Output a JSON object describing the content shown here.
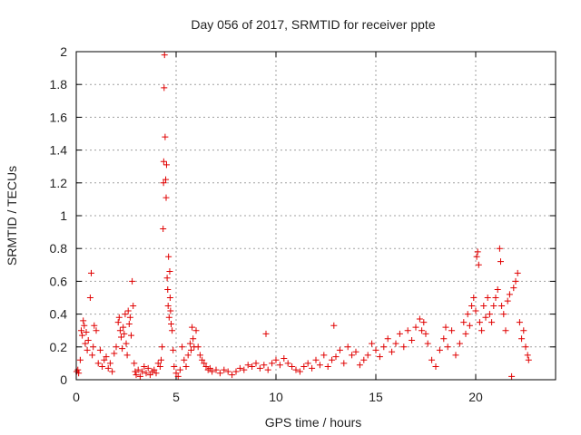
{
  "chart_data": {
    "type": "scatter",
    "title": "Day 056 of 2017, SRMTID for receiver ppte",
    "xlabel": "GPS time / hours",
    "ylabel": "SRMTID / TECUs",
    "xlim": [
      0,
      24
    ],
    "ylim": [
      0,
      2
    ],
    "xticks": [
      0,
      5,
      10,
      15,
      20
    ],
    "xtick_labels": [
      "0",
      "5",
      "10",
      "15",
      "20"
    ],
    "yticks": [
      0,
      0.2,
      0.4,
      0.6,
      0.8,
      1,
      1.2,
      1.4,
      1.6,
      1.8,
      2
    ],
    "ytick_labels": [
      "0",
      "0.2",
      "0.4",
      "0.6",
      "0.8",
      "1",
      "1.2",
      "1.4",
      "1.6",
      "1.8",
      "2"
    ],
    "grid": true,
    "marker": "+",
    "series": [
      {
        "name": "SRMTID",
        "color": "#e00000",
        "points": [
          [
            0.02,
            0.05
          ],
          [
            0.08,
            0.06
          ],
          [
            0.12,
            0.04
          ],
          [
            0.2,
            0.12
          ],
          [
            0.25,
            0.3
          ],
          [
            0.3,
            0.27
          ],
          [
            0.35,
            0.36
          ],
          [
            0.4,
            0.33
          ],
          [
            0.45,
            0.22
          ],
          [
            0.5,
            0.29
          ],
          [
            0.55,
            0.18
          ],
          [
            0.6,
            0.24
          ],
          [
            0.7,
            0.5
          ],
          [
            0.75,
            0.65
          ],
          [
            0.8,
            0.15
          ],
          [
            0.85,
            0.2
          ],
          [
            0.9,
            0.33
          ],
          [
            1.0,
            0.3
          ],
          [
            1.1,
            0.1
          ],
          [
            1.2,
            0.18
          ],
          [
            1.3,
            0.08
          ],
          [
            1.4,
            0.12
          ],
          [
            1.5,
            0.14
          ],
          [
            1.6,
            0.07
          ],
          [
            1.7,
            0.1
          ],
          [
            1.8,
            0.05
          ],
          [
            1.9,
            0.16
          ],
          [
            2.0,
            0.2
          ],
          [
            2.1,
            0.35
          ],
          [
            2.15,
            0.38
          ],
          [
            2.2,
            0.3
          ],
          [
            2.25,
            0.26
          ],
          [
            2.3,
            0.19
          ],
          [
            2.35,
            0.32
          ],
          [
            2.4,
            0.28
          ],
          [
            2.45,
            0.4
          ],
          [
            2.5,
            0.22
          ],
          [
            2.55,
            0.15
          ],
          [
            2.6,
            0.42
          ],
          [
            2.65,
            0.34
          ],
          [
            2.7,
            0.38
          ],
          [
            2.75,
            0.27
          ],
          [
            2.8,
            0.6
          ],
          [
            2.85,
            0.45
          ],
          [
            2.9,
            0.1
          ],
          [
            2.95,
            0.05
          ],
          [
            3.0,
            0.03
          ],
          [
            3.1,
            0.06
          ],
          [
            3.2,
            0.02
          ],
          [
            3.3,
            0.05
          ],
          [
            3.4,
            0.08
          ],
          [
            3.5,
            0.04
          ],
          [
            3.6,
            0.07
          ],
          [
            3.7,
            0.03
          ],
          [
            3.8,
            0.05
          ],
          [
            3.9,
            0.06
          ],
          [
            4.0,
            0.04
          ],
          [
            4.1,
            0.1
          ],
          [
            4.2,
            0.08
          ],
          [
            4.25,
            0.12
          ],
          [
            4.3,
            0.2
          ],
          [
            4.35,
            0.92
          ],
          [
            4.37,
            1.2
          ],
          [
            4.38,
            1.33
          ],
          [
            4.4,
            1.78
          ],
          [
            4.42,
            1.98
          ],
          [
            4.45,
            1.48
          ],
          [
            4.48,
            1.22
          ],
          [
            4.5,
            1.11
          ],
          [
            4.52,
            1.31
          ],
          [
            4.55,
            0.62
          ],
          [
            4.58,
            0.55
          ],
          [
            4.6,
            0.45
          ],
          [
            4.62,
            0.75
          ],
          [
            4.65,
            0.38
          ],
          [
            4.68,
            0.66
          ],
          [
            4.7,
            0.5
          ],
          [
            4.72,
            0.42
          ],
          [
            4.75,
            0.34
          ],
          [
            4.8,
            0.3
          ],
          [
            4.85,
            0.18
          ],
          [
            4.9,
            0.08
          ],
          [
            5.0,
            0.04
          ],
          [
            5.1,
            0.02
          ],
          [
            5.2,
            0.06
          ],
          [
            5.3,
            0.2
          ],
          [
            5.4,
            0.12
          ],
          [
            5.5,
            0.08
          ],
          [
            5.6,
            0.15
          ],
          [
            5.7,
            0.22
          ],
          [
            5.75,
            0.18
          ],
          [
            5.8,
            0.32
          ],
          [
            5.85,
            0.25
          ],
          [
            5.9,
            0.2
          ],
          [
            6.0,
            0.3
          ],
          [
            6.1,
            0.2
          ],
          [
            6.2,
            0.15
          ],
          [
            6.3,
            0.12
          ],
          [
            6.4,
            0.1
          ],
          [
            6.5,
            0.08
          ],
          [
            6.6,
            0.06
          ],
          [
            6.7,
            0.07
          ],
          [
            6.8,
            0.05
          ],
          [
            7.0,
            0.06
          ],
          [
            7.2,
            0.04
          ],
          [
            7.4,
            0.06
          ],
          [
            7.6,
            0.05
          ],
          [
            7.8,
            0.03
          ],
          [
            8.0,
            0.05
          ],
          [
            8.2,
            0.07
          ],
          [
            8.4,
            0.06
          ],
          [
            8.6,
            0.09
          ],
          [
            8.8,
            0.08
          ],
          [
            9.0,
            0.1
          ],
          [
            9.2,
            0.07
          ],
          [
            9.4,
            0.09
          ],
          [
            9.5,
            0.28
          ],
          [
            9.6,
            0.06
          ],
          [
            9.8,
            0.1
          ],
          [
            10.0,
            0.12
          ],
          [
            10.2,
            0.09
          ],
          [
            10.4,
            0.13
          ],
          [
            10.6,
            0.1
          ],
          [
            10.8,
            0.08
          ],
          [
            11.0,
            0.06
          ],
          [
            11.2,
            0.05
          ],
          [
            11.4,
            0.08
          ],
          [
            11.6,
            0.1
          ],
          [
            11.8,
            0.07
          ],
          [
            12.0,
            0.12
          ],
          [
            12.2,
            0.09
          ],
          [
            12.4,
            0.15
          ],
          [
            12.6,
            0.08
          ],
          [
            12.8,
            0.12
          ],
          [
            12.9,
            0.33
          ],
          [
            13.0,
            0.14
          ],
          [
            13.2,
            0.18
          ],
          [
            13.4,
            0.1
          ],
          [
            13.6,
            0.2
          ],
          [
            13.8,
            0.15
          ],
          [
            14.0,
            0.17
          ],
          [
            14.2,
            0.09
          ],
          [
            14.4,
            0.12
          ],
          [
            14.6,
            0.15
          ],
          [
            14.8,
            0.22
          ],
          [
            15.0,
            0.18
          ],
          [
            15.2,
            0.14
          ],
          [
            15.4,
            0.2
          ],
          [
            15.6,
            0.25
          ],
          [
            15.8,
            0.17
          ],
          [
            16.0,
            0.22
          ],
          [
            16.2,
            0.28
          ],
          [
            16.4,
            0.2
          ],
          [
            16.6,
            0.3
          ],
          [
            16.8,
            0.24
          ],
          [
            17.0,
            0.32
          ],
          [
            17.2,
            0.37
          ],
          [
            17.3,
            0.3
          ],
          [
            17.4,
            0.35
          ],
          [
            17.5,
            0.28
          ],
          [
            17.6,
            0.22
          ],
          [
            17.8,
            0.12
          ],
          [
            18.0,
            0.08
          ],
          [
            18.2,
            0.18
          ],
          [
            18.4,
            0.25
          ],
          [
            18.5,
            0.32
          ],
          [
            18.6,
            0.2
          ],
          [
            18.8,
            0.3
          ],
          [
            19.0,
            0.15
          ],
          [
            19.2,
            0.22
          ],
          [
            19.4,
            0.35
          ],
          [
            19.5,
            0.28
          ],
          [
            19.6,
            0.4
          ],
          [
            19.7,
            0.33
          ],
          [
            19.8,
            0.45
          ],
          [
            19.9,
            0.5
          ],
          [
            20.0,
            0.42
          ],
          [
            20.05,
            0.75
          ],
          [
            20.1,
            0.78
          ],
          [
            20.15,
            0.7
          ],
          [
            20.2,
            0.35
          ],
          [
            20.3,
            0.3
          ],
          [
            20.4,
            0.45
          ],
          [
            20.5,
            0.38
          ],
          [
            20.6,
            0.5
          ],
          [
            20.7,
            0.4
          ],
          [
            20.8,
            0.35
          ],
          [
            20.9,
            0.45
          ],
          [
            21.0,
            0.5
          ],
          [
            21.1,
            0.55
          ],
          [
            21.2,
            0.8
          ],
          [
            21.25,
            0.72
          ],
          [
            21.3,
            0.45
          ],
          [
            21.4,
            0.4
          ],
          [
            21.5,
            0.3
          ],
          [
            21.6,
            0.48
          ],
          [
            21.7,
            0.52
          ],
          [
            21.8,
            0.02
          ],
          [
            21.9,
            0.56
          ],
          [
            22.0,
            0.6
          ],
          [
            22.1,
            0.65
          ],
          [
            22.2,
            0.35
          ],
          [
            22.3,
            0.25
          ],
          [
            22.4,
            0.3
          ],
          [
            22.5,
            0.2
          ],
          [
            22.6,
            0.15
          ],
          [
            22.65,
            0.12
          ]
        ]
      }
    ]
  }
}
